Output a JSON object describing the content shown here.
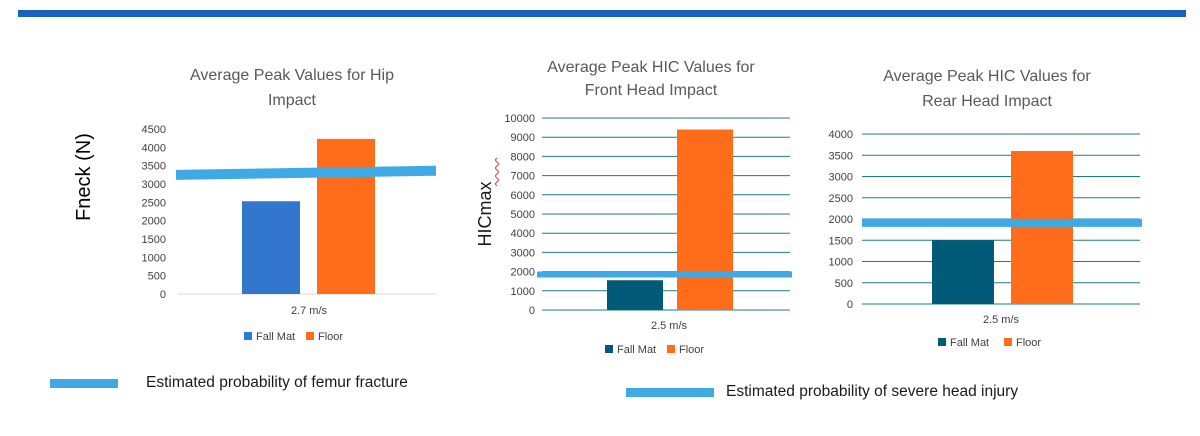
{
  "colors": {
    "top_bar": "#1565c0",
    "threshold_line": "#3fa9e5",
    "hip_fall_mat": "#3376cd",
    "head_fall_mat": "#005a78",
    "floor": "#ff6d1a",
    "text": "#404040"
  },
  "bottom_legend": {
    "femur": "Estimated probability of femur fracture",
    "head": "Estimated probability of severe head injury"
  },
  "chart_data": [
    {
      "type": "bar",
      "title_lines": [
        "Average Peak Values for Hip",
        "Impact"
      ],
      "ylabel": "Fneck (N)",
      "categories": [
        "2.7 m/s"
      ],
      "series": [
        {
          "name": "Fall Mat",
          "values": [
            2530
          ]
        },
        {
          "name": "Floor",
          "values": [
            4230
          ]
        }
      ],
      "ylim": [
        0,
        4500
      ],
      "yticks": [
        0,
        500,
        1000,
        1500,
        2000,
        2500,
        3000,
        3500,
        4000,
        4500
      ],
      "grid": false,
      "threshold": {
        "from": 3250,
        "to": 3360
      },
      "legend_position": "bottom"
    },
    {
      "type": "bar",
      "title_lines": [
        "Average Peak HIC Values for",
        "Front Head Impact"
      ],
      "ylabel": "HICmax",
      "categories": [
        "2.5 m/s"
      ],
      "series": [
        {
          "name": "Fall Mat",
          "values": [
            1550
          ]
        },
        {
          "name": "Floor",
          "values": [
            9400
          ]
        }
      ],
      "ylim": [
        0,
        10000
      ],
      "yticks": [
        0,
        1000,
        2000,
        3000,
        4000,
        5000,
        6000,
        7000,
        8000,
        9000,
        10000
      ],
      "grid": true,
      "threshold": {
        "from": 1850,
        "to": 1850
      },
      "legend_position": "bottom"
    },
    {
      "type": "bar",
      "title_lines": [
        "Average Peak HIC Values for",
        "Rear Head Impact"
      ],
      "categories": [
        "2.5 m/s"
      ],
      "series": [
        {
          "name": "Fall Mat",
          "values": [
            1500
          ]
        },
        {
          "name": "Floor",
          "values": [
            3600
          ]
        }
      ],
      "ylim": [
        0,
        4000
      ],
      "yticks": [
        0,
        500,
        1000,
        1500,
        2000,
        2500,
        3000,
        3500,
        4000
      ],
      "grid": true,
      "threshold": {
        "from": 1910,
        "to": 1910
      },
      "legend_position": "bottom"
    }
  ]
}
